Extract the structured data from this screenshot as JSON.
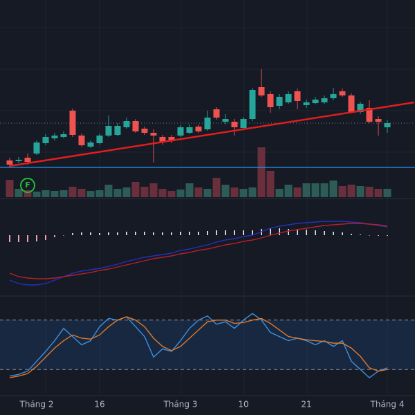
{
  "chart_data": {
    "type": "candlestick",
    "up_color": "#26a69a",
    "down_color": "#ef5350",
    "ylim": [
      0,
      285
    ],
    "candles": [
      {
        "open": 53,
        "high": 57,
        "low": 43,
        "close": 47
      },
      {
        "open": 52,
        "high": 58,
        "low": 49,
        "close": 54
      },
      {
        "open": 57,
        "high": 63,
        "low": 47,
        "close": 51
      },
      {
        "open": 63,
        "high": 82,
        "low": 61,
        "close": 79
      },
      {
        "open": 78,
        "high": 91,
        "low": 75,
        "close": 87
      },
      {
        "open": 85,
        "high": 93,
        "low": 82,
        "close": 89
      },
      {
        "open": 87,
        "high": 95,
        "low": 85,
        "close": 91
      },
      {
        "open": 125,
        "high": 128,
        "low": 87,
        "close": 90
      },
      {
        "open": 89,
        "high": 92,
        "low": 73,
        "close": 75
      },
      {
        "open": 73,
        "high": 82,
        "low": 71,
        "close": 79
      },
      {
        "open": 78,
        "high": 92,
        "low": 76,
        "close": 89
      },
      {
        "open": 89,
        "high": 118,
        "low": 87,
        "close": 103
      },
      {
        "open": 90,
        "high": 107,
        "low": 88,
        "close": 103
      },
      {
        "open": 101,
        "high": 115,
        "low": 99,
        "close": 110
      },
      {
        "open": 110,
        "high": 113,
        "low": 93,
        "close": 95
      },
      {
        "open": 99,
        "high": 102,
        "low": 90,
        "close": 93
      },
      {
        "open": 93,
        "high": 98,
        "low": 50,
        "close": 89
      },
      {
        "open": 87,
        "high": 90,
        "low": 76,
        "close": 79
      },
      {
        "open": 87,
        "high": 90,
        "low": 78,
        "close": 81
      },
      {
        "open": 89,
        "high": 104,
        "low": 87,
        "close": 101
      },
      {
        "open": 93,
        "high": 105,
        "low": 91,
        "close": 101
      },
      {
        "open": 102,
        "high": 105,
        "low": 93,
        "close": 95
      },
      {
        "open": 98,
        "high": 125,
        "low": 96,
        "close": 115
      },
      {
        "open": 127,
        "high": 130,
        "low": 112,
        "close": 115
      },
      {
        "open": 109,
        "high": 120,
        "low": 105,
        "close": 113
      },
      {
        "open": 109,
        "high": 113,
        "low": 89,
        "close": 101
      },
      {
        "open": 100,
        "high": 116,
        "low": 98,
        "close": 113
      },
      {
        "open": 113,
        "high": 158,
        "low": 110,
        "close": 155
      },
      {
        "open": 159,
        "high": 185,
        "low": 145,
        "close": 147
      },
      {
        "open": 149,
        "high": 153,
        "low": 122,
        "close": 130
      },
      {
        "open": 132,
        "high": 149,
        "low": 127,
        "close": 145
      },
      {
        "open": 137,
        "high": 153,
        "low": 135,
        "close": 149
      },
      {
        "open": 153,
        "high": 157,
        "low": 127,
        "close": 139
      },
      {
        "open": 133,
        "high": 141,
        "low": 129,
        "close": 137
      },
      {
        "open": 136,
        "high": 145,
        "low": 134,
        "close": 141
      },
      {
        "open": 137,
        "high": 147,
        "low": 135,
        "close": 143
      },
      {
        "open": 143,
        "high": 158,
        "low": 140,
        "close": 149
      },
      {
        "open": 153,
        "high": 157,
        "low": 145,
        "close": 147
      },
      {
        "open": 147,
        "high": 150,
        "low": 121,
        "close": 123
      },
      {
        "open": 123,
        "high": 138,
        "low": 120,
        "close": 135
      },
      {
        "open": 129,
        "high": 140,
        "low": 107,
        "close": 109
      },
      {
        "open": 113,
        "high": 117,
        "low": 89,
        "close": 109
      },
      {
        "open": 101,
        "high": 111,
        "low": 93,
        "close": 107
      }
    ],
    "hlines": [
      {
        "value": 107,
        "color": "#5d6b7a",
        "dash": true
      },
      {
        "value": 43,
        "color": "#2196f3",
        "dash": false
      }
    ],
    "trendline": {
      "color": "#e01e1e",
      "from": [
        0,
        45
      ],
      "to": [
        45,
        137
      ]
    },
    "volume": {
      "ylim": [
        0,
        80
      ],
      "values": [
        25,
        12,
        10,
        8,
        10,
        9,
        10,
        15,
        12,
        9,
        10,
        18,
        12,
        14,
        22,
        15,
        20,
        12,
        9,
        11,
        20,
        14,
        12,
        28,
        18,
        14,
        12,
        14,
        72,
        38,
        12,
        18,
        14,
        20,
        20,
        20,
        24,
        16,
        18,
        16,
        15,
        12,
        12
      ],
      "up_color": "#2c5c55",
      "down_color": "#6a2f3c"
    },
    "marker": {
      "label": "F",
      "index": 2,
      "color": "#1fbf3a"
    },
    "macd": {
      "ylim": [
        -85,
        50
      ],
      "macd": {
        "color": "#2332b8",
        "values": [
          -65,
          -70,
          -72,
          -72,
          -70,
          -65,
          -60,
          -55,
          -52,
          -50,
          -48,
          -45,
          -42,
          -38,
          -35,
          -32,
          -30,
          -28,
          -26,
          -22,
          -20,
          -17,
          -14,
          -10,
          -7,
          -5,
          -2,
          0,
          5,
          10,
          13,
          15,
          17,
          18,
          19,
          20,
          20,
          20,
          19,
          18,
          16,
          14,
          12
        ]
      },
      "signal": {
        "color": "#b3202a",
        "values": [
          -55,
          -60,
          -62,
          -63,
          -63,
          -62,
          -60,
          -58,
          -56,
          -54,
          -51,
          -49,
          -46,
          -43,
          -40,
          -37,
          -34,
          -32,
          -30,
          -27,
          -25,
          -22,
          -20,
          -17,
          -14,
          -12,
          -9,
          -7,
          -4,
          0,
          3,
          6,
          8,
          10,
          12,
          14,
          15,
          16,
          17,
          17,
          16,
          15,
          13
        ]
      },
      "histogram": {
        "up_color": "#cfd3dc",
        "down_color": "#f0a0b0",
        "values": [
          -10,
          -10,
          -10,
          -9,
          -7,
          -3,
          0,
          3,
          4,
          4,
          3,
          4,
          4,
          5,
          5,
          5,
          4,
          4,
          4,
          5,
          5,
          5,
          6,
          7,
          7,
          7,
          7,
          7,
          9,
          10,
          10,
          9,
          9,
          8,
          7,
          6,
          5,
          4,
          2,
          1,
          0,
          -1,
          -1
        ]
      }
    },
    "stoch": {
      "ylim": [
        0,
        100
      ],
      "band": [
        20,
        80
      ],
      "band_color": "rgba(33,80,140,0.28)",
      "k": {
        "color": "#3d8fe0",
        "values": [
          12,
          14,
          18,
          30,
          42,
          55,
          70,
          60,
          50,
          55,
          72,
          82,
          80,
          84,
          72,
          60,
          35,
          45,
          42,
          55,
          70,
          80,
          85,
          75,
          78,
          70,
          80,
          88,
          80,
          65,
          60,
          55,
          58,
          55,
          50,
          55,
          48,
          55,
          30,
          20,
          10,
          18,
          22
        ]
      },
      "d": {
        "color": "#e07a2a",
        "values": [
          10,
          12,
          15,
          24,
          35,
          46,
          55,
          62,
          58,
          57,
          62,
          72,
          80,
          84,
          80,
          72,
          58,
          48,
          43,
          48,
          58,
          68,
          78,
          80,
          80,
          76,
          77,
          80,
          82,
          76,
          68,
          60,
          58,
          56,
          55,
          54,
          52,
          52,
          46,
          36,
          22,
          18,
          20
        ]
      }
    },
    "x_labels": [
      {
        "label": "Tháng 2",
        "index": 3
      },
      {
        "label": "16",
        "index": 10
      },
      {
        "label": "Tháng 3",
        "index": 19
      },
      {
        "label": "10",
        "index": 26
      },
      {
        "label": "21",
        "index": 33
      },
      {
        "label": "Tháng 4",
        "index": 42
      }
    ]
  }
}
